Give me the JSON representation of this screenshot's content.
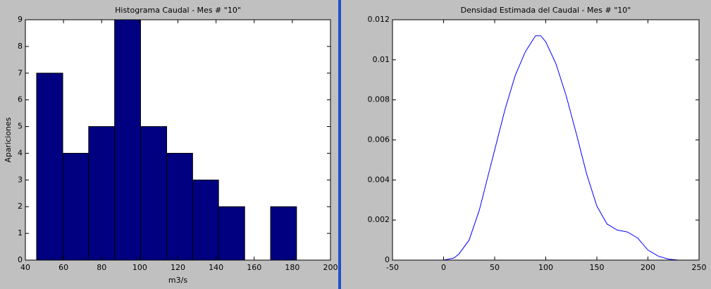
{
  "chart_data": [
    {
      "type": "histogram",
      "title": "Histograma Caudal - Mes # \"10\"",
      "x_label": "m3/s",
      "y_label": "Apariciones",
      "bins": [
        45.9,
        59.6,
        73.2,
        86.8,
        100.4,
        114.1,
        127.7,
        141.3,
        155.0,
        168.6,
        182.2
      ],
      "values": [
        7,
        4,
        5,
        9,
        5,
        4,
        3,
        2,
        0,
        2
      ],
      "color": "#000080",
      "xlim": [
        40,
        200
      ],
      "xticks": [
        40,
        60,
        80,
        100,
        120,
        140,
        160,
        180,
        200
      ],
      "ylim": [
        0,
        9
      ],
      "yticks": [
        0,
        1,
        2,
        3,
        4,
        5,
        6,
        7,
        8,
        9
      ]
    },
    {
      "type": "line",
      "title": "Densidad Estimada del Caudal - Mes # \"10\"",
      "x": [
        0,
        10,
        15,
        25,
        35,
        50,
        60,
        70,
        80,
        90,
        95,
        100,
        110,
        120,
        130,
        140,
        150,
        160,
        170,
        180,
        190,
        200,
        210,
        220,
        230
      ],
      "values": [
        0,
        0.0001,
        0.0003,
        0.001,
        0.0025,
        0.0055,
        0.0075,
        0.0092,
        0.0104,
        0.0112,
        0.0112,
        0.0109,
        0.0098,
        0.0082,
        0.0063,
        0.0043,
        0.0027,
        0.0018,
        0.0015,
        0.0014,
        0.0011,
        0.0005,
        0.0002,
        5e-05,
        0
      ],
      "color": "#0000ff",
      "xlim": [
        -50,
        250
      ],
      "xticks": [
        -50,
        0,
        50,
        100,
        150,
        200,
        250
      ],
      "ylim": [
        0,
        0.012
      ],
      "yticks": [
        0,
        0.002,
        0.004,
        0.006,
        0.008,
        0.01,
        0.012
      ]
    }
  ]
}
